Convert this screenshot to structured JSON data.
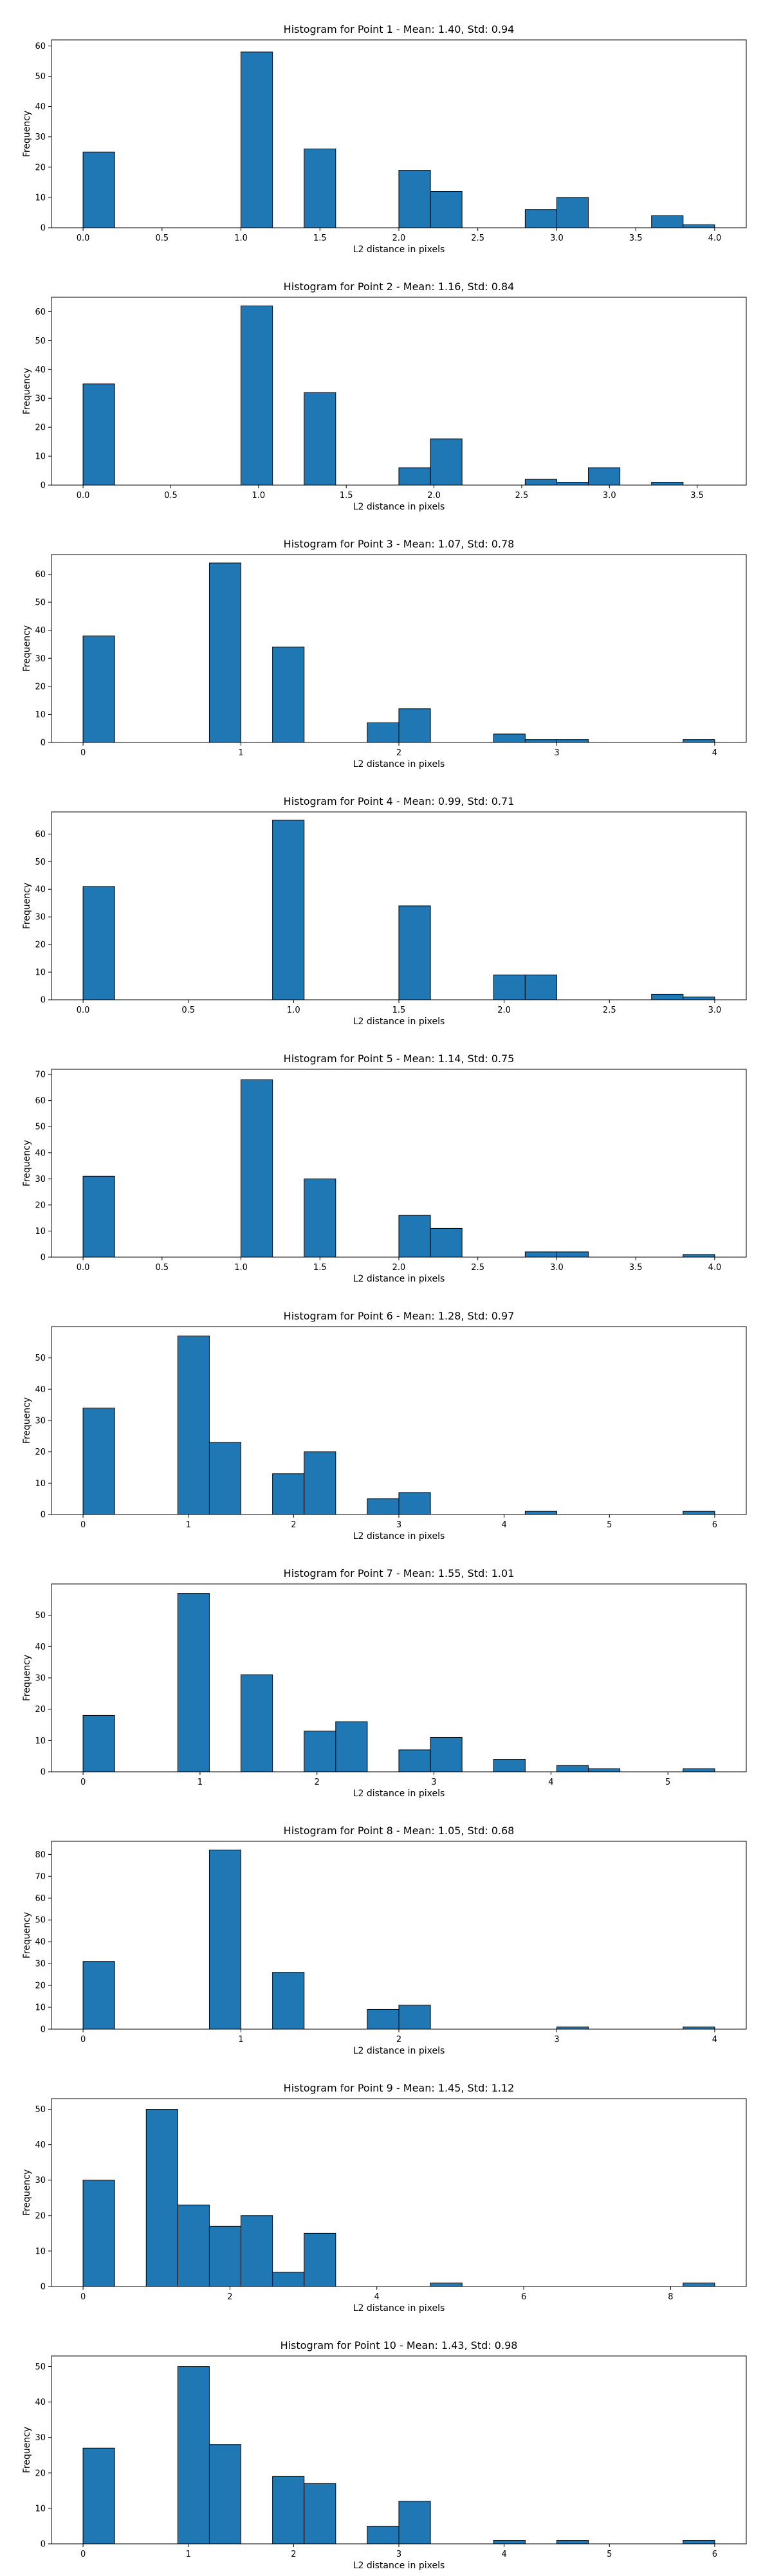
{
  "style": {
    "bar_color": "#1f77b4",
    "edge_color": "#000000",
    "background": "#ffffff"
  },
  "chart_data": [
    {
      "type": "bar",
      "title": "Histogram for Point 1 - Mean: 1.40, Std: 0.94",
      "xlabel": "L2 distance in pixels",
      "ylabel": "Frequency",
      "xlim": [
        -0.2,
        4.2
      ],
      "ylim": [
        0,
        62
      ],
      "xticks": [
        0.0,
        0.5,
        1.0,
        1.5,
        2.0,
        2.5,
        3.0,
        3.5,
        4.0
      ],
      "xtick_labels": [
        "0.0",
        "0.5",
        "1.0",
        "1.5",
        "2.0",
        "2.5",
        "3.0",
        "3.5",
        "4.0"
      ],
      "yticks": [
        0,
        10,
        20,
        30,
        40,
        50,
        60
      ],
      "bin_edges": [
        0.0,
        0.2,
        0.4,
        0.6,
        0.8,
        1.0,
        1.2,
        1.4,
        1.6,
        1.8,
        2.0,
        2.2,
        2.4,
        2.6,
        2.8,
        3.0,
        3.2,
        3.4,
        3.6,
        3.8,
        4.0
      ],
      "counts": [
        25,
        0,
        0,
        0,
        0,
        58,
        0,
        26,
        0,
        0,
        19,
        12,
        0,
        0,
        6,
        10,
        0,
        0,
        4,
        1
      ]
    },
    {
      "type": "bar",
      "title": "Histogram for Point 2 - Mean: 1.16, Std: 0.84",
      "xlabel": "L2 distance in pixels",
      "ylabel": "Frequency",
      "xlim": [
        -0.18,
        3.78
      ],
      "ylim": [
        0,
        65
      ],
      "xticks": [
        0.0,
        0.5,
        1.0,
        1.5,
        2.0,
        2.5,
        3.0,
        3.5
      ],
      "xtick_labels": [
        "0.0",
        "0.5",
        "1.0",
        "1.5",
        "2.0",
        "2.5",
        "3.0",
        "3.5"
      ],
      "yticks": [
        0,
        10,
        20,
        30,
        40,
        50,
        60
      ],
      "bin_edges": [
        0.0,
        0.18,
        0.36,
        0.54,
        0.72,
        0.9,
        1.08,
        1.26,
        1.44,
        1.62,
        1.8,
        1.98,
        2.16,
        2.34,
        2.52,
        2.7,
        2.88,
        3.06,
        3.24,
        3.42,
        3.6
      ],
      "counts": [
        35,
        0,
        0,
        0,
        0,
        62,
        0,
        32,
        0,
        0,
        6,
        16,
        0,
        0,
        2,
        1,
        6,
        0,
        1,
        0
      ]
    },
    {
      "type": "bar",
      "title": "Histogram for Point 3 - Mean: 1.07, Std: 0.78",
      "xlabel": "L2 distance in pixels",
      "ylabel": "Frequency",
      "xlim": [
        -0.2,
        4.2
      ],
      "ylim": [
        0,
        67
      ],
      "xticks": [
        0,
        1,
        2,
        3,
        4
      ],
      "xtick_labels": [
        "0",
        "1",
        "2",
        "3",
        "4"
      ],
      "yticks": [
        0,
        10,
        20,
        30,
        40,
        50,
        60
      ],
      "bin_edges": [
        0.0,
        0.2,
        0.4,
        0.6,
        0.8,
        1.0,
        1.2,
        1.4,
        1.6,
        1.8,
        2.0,
        2.2,
        2.4,
        2.6,
        2.8,
        3.0,
        3.2,
        3.4,
        3.6,
        3.8,
        4.0
      ],
      "counts": [
        38,
        0,
        0,
        0,
        64,
        0,
        34,
        0,
        0,
        7,
        12,
        0,
        0,
        3,
        1,
        1,
        0,
        0,
        0,
        1
      ]
    },
    {
      "type": "bar",
      "title": "Histogram for Point 4 - Mean: 0.99, Std: 0.71",
      "xlabel": "L2 distance in pixels",
      "ylabel": "Frequency",
      "xlim": [
        -0.15,
        3.15
      ],
      "ylim": [
        0,
        68
      ],
      "xticks": [
        0.0,
        0.5,
        1.0,
        1.5,
        2.0,
        2.5,
        3.0
      ],
      "xtick_labels": [
        "0.0",
        "0.5",
        "1.0",
        "1.5",
        "2.0",
        "2.5",
        "3.0"
      ],
      "yticks": [
        0,
        10,
        20,
        30,
        40,
        50,
        60
      ],
      "bin_edges": [
        0.0,
        0.15,
        0.3,
        0.45,
        0.6,
        0.75,
        0.9,
        1.05,
        1.2,
        1.35,
        1.5,
        1.65,
        1.8,
        1.95,
        2.1,
        2.25,
        2.4,
        2.55,
        2.7,
        2.85,
        3.0
      ],
      "counts": [
        41,
        0,
        0,
        0,
        0,
        0,
        65,
        0,
        0,
        0,
        34,
        0,
        0,
        9,
        9,
        0,
        0,
        0,
        2,
        1
      ]
    },
    {
      "type": "bar",
      "title": "Histogram for Point 5 - Mean: 1.14, Std: 0.75",
      "xlabel": "L2 distance in pixels",
      "ylabel": "Frequency",
      "xlim": [
        -0.2,
        4.2
      ],
      "ylim": [
        0,
        72
      ],
      "xticks": [
        0.0,
        0.5,
        1.0,
        1.5,
        2.0,
        2.5,
        3.0,
        3.5,
        4.0
      ],
      "xtick_labels": [
        "0.0",
        "0.5",
        "1.0",
        "1.5",
        "2.0",
        "2.5",
        "3.0",
        "3.5",
        "4.0"
      ],
      "yticks": [
        0,
        10,
        20,
        30,
        40,
        50,
        60,
        70
      ],
      "bin_edges": [
        0.0,
        0.2,
        0.4,
        0.6,
        0.8,
        1.0,
        1.2,
        1.4,
        1.6,
        1.8,
        2.0,
        2.2,
        2.4,
        2.6,
        2.8,
        3.0,
        3.2,
        3.4,
        3.6,
        3.8,
        4.0
      ],
      "counts": [
        31,
        0,
        0,
        0,
        0,
        68,
        0,
        30,
        0,
        0,
        16,
        11,
        0,
        0,
        2,
        2,
        0,
        0,
        0,
        1
      ]
    },
    {
      "type": "bar",
      "title": "Histogram for Point 6 - Mean: 1.28, Std: 0.97",
      "xlabel": "L2 distance in pixels",
      "ylabel": "Frequency",
      "xlim": [
        -0.3,
        6.3
      ],
      "ylim": [
        0,
        60
      ],
      "xticks": [
        0,
        1,
        2,
        3,
        4,
        5,
        6
      ],
      "xtick_labels": [
        "0",
        "1",
        "2",
        "3",
        "4",
        "5",
        "6"
      ],
      "yticks": [
        0,
        10,
        20,
        30,
        40,
        50
      ],
      "bin_edges": [
        0.0,
        0.3,
        0.6,
        0.9,
        1.2,
        1.5,
        1.8,
        2.1,
        2.4,
        2.7,
        3.0,
        3.3,
        3.6,
        3.9,
        4.2,
        4.5,
        4.8,
        5.1,
        5.4,
        5.7,
        6.0
      ],
      "counts": [
        34,
        0,
        0,
        57,
        23,
        0,
        13,
        20,
        0,
        5,
        7,
        0,
        0,
        0,
        1,
        0,
        0,
        0,
        0,
        1
      ]
    },
    {
      "type": "bar",
      "title": "Histogram for Point 7 - Mean: 1.55, Std: 1.01",
      "xlabel": "L2 distance in pixels",
      "ylabel": "Frequency",
      "xlim": [
        -0.27,
        5.67
      ],
      "ylim": [
        0,
        60
      ],
      "xticks": [
        0,
        1,
        2,
        3,
        4,
        5
      ],
      "xtick_labels": [
        "0",
        "1",
        "2",
        "3",
        "4",
        "5"
      ],
      "yticks": [
        0,
        10,
        20,
        30,
        40,
        50
      ],
      "bin_edges": [
        0.0,
        0.27,
        0.54,
        0.81,
        1.08,
        1.35,
        1.62,
        1.89,
        2.16,
        2.43,
        2.7,
        2.97,
        3.24,
        3.51,
        3.78,
        4.05,
        4.32,
        4.59,
        4.86,
        5.13,
        5.4
      ],
      "counts": [
        18,
        0,
        0,
        57,
        0,
        31,
        0,
        13,
        16,
        0,
        7,
        11,
        0,
        4,
        0,
        2,
        1,
        0,
        0,
        1
      ]
    },
    {
      "type": "bar",
      "title": "Histogram for Point 8 - Mean: 1.05, Std: 0.68",
      "xlabel": "L2 distance in pixels",
      "ylabel": "Frequency",
      "xlim": [
        -0.2,
        4.2
      ],
      "ylim": [
        0,
        86
      ],
      "xticks": [
        0,
        1,
        2,
        3,
        4
      ],
      "xtick_labels": [
        "0",
        "1",
        "2",
        "3",
        "4"
      ],
      "yticks": [
        0,
        10,
        20,
        30,
        40,
        50,
        60,
        70,
        80
      ],
      "bin_edges": [
        0.0,
        0.2,
        0.4,
        0.6,
        0.8,
        1.0,
        1.2,
        1.4,
        1.6,
        1.8,
        2.0,
        2.2,
        2.4,
        2.6,
        2.8,
        3.0,
        3.2,
        3.4,
        3.6,
        3.8,
        4.0
      ],
      "counts": [
        31,
        0,
        0,
        0,
        82,
        0,
        26,
        0,
        0,
        9,
        11,
        0,
        0,
        0,
        0,
        1,
        0,
        0,
        0,
        1
      ]
    },
    {
      "type": "bar",
      "title": "Histogram for Point 9 - Mean: 1.45, Std: 1.12",
      "xlabel": "L2 distance in pixels",
      "ylabel": "Frequency",
      "xlim": [
        -0.43,
        9.03
      ],
      "ylim": [
        0,
        53
      ],
      "xticks": [
        0,
        2,
        4,
        6,
        8
      ],
      "xtick_labels": [
        "0",
        "2",
        "4",
        "6",
        "8"
      ],
      "yticks": [
        0,
        10,
        20,
        30,
        40,
        50
      ],
      "bin_edges": [
        0.0,
        0.43,
        0.86,
        1.29,
        1.72,
        2.15,
        2.58,
        3.01,
        3.44,
        3.87,
        4.3,
        4.73,
        5.16,
        5.59,
        6.02,
        6.45,
        6.88,
        7.31,
        7.74,
        8.17,
        8.6
      ],
      "counts": [
        30,
        0,
        50,
        23,
        17,
        20,
        4,
        15,
        0,
        0,
        0,
        1,
        0,
        0,
        0,
        0,
        0,
        0,
        0,
        1
      ]
    },
    {
      "type": "bar",
      "title": "Histogram for Point 10 - Mean: 1.43, Std: 0.98",
      "xlabel": "L2 distance in pixels",
      "ylabel": "Frequency",
      "xlim": [
        -0.3,
        6.3
      ],
      "ylim": [
        0,
        53
      ],
      "xticks": [
        0,
        1,
        2,
        3,
        4,
        5,
        6
      ],
      "xtick_labels": [
        "0",
        "1",
        "2",
        "3",
        "4",
        "5",
        "6"
      ],
      "yticks": [
        0,
        10,
        20,
        30,
        40,
        50
      ],
      "bin_edges": [
        0.0,
        0.3,
        0.6,
        0.9,
        1.2,
        1.5,
        1.8,
        2.1,
        2.4,
        2.7,
        3.0,
        3.3,
        3.6,
        3.9,
        4.2,
        4.5,
        4.8,
        5.1,
        5.4,
        5.7,
        6.0
      ],
      "counts": [
        27,
        0,
        0,
        50,
        28,
        0,
        19,
        17,
        0,
        5,
        12,
        0,
        0,
        1,
        0,
        1,
        0,
        0,
        0,
        1
      ]
    }
  ]
}
